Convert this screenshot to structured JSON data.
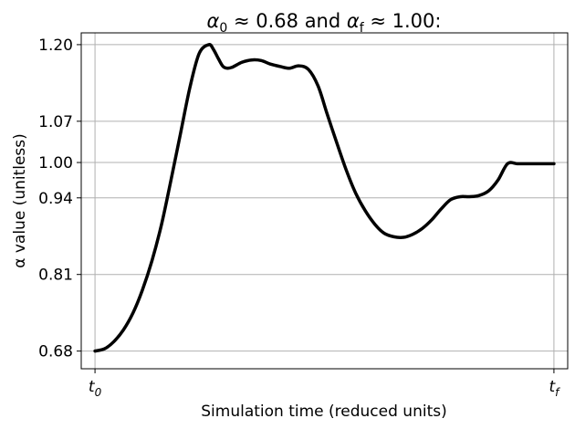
{
  "chart_data": {
    "type": "line",
    "title": "α₀ ≈ 0.68 and α_f ≈ 1.00:",
    "title_parts": {
      "a0": "α",
      "a0_sub": "0",
      "mid": "≈ 0.68 and",
      "af": "α",
      "af_sub": "f",
      "end": "≈ 1.00:"
    },
    "xlabel": "Simulation time (reduced units)",
    "ylabel": "α value (unitless)",
    "xlim": [
      -0.03,
      1.03
    ],
    "ylim": [
      0.65,
      1.22
    ],
    "grid": true,
    "x_ticks": [
      {
        "value": 0,
        "label": "t",
        "sub": "0"
      },
      {
        "value": 1,
        "label": "t",
        "sub": "f"
      }
    ],
    "y_ticks": [
      {
        "value": 0.68,
        "label": "0.68"
      },
      {
        "value": 0.81,
        "label": "0.81"
      },
      {
        "value": 0.94,
        "label": "0.94"
      },
      {
        "value": 1.0,
        "label": "1.00"
      },
      {
        "value": 1.07,
        "label": "1.07"
      },
      {
        "value": 1.2,
        "label": "1.20"
      }
    ],
    "series": [
      {
        "color": "#000000",
        "x": [
          0.0,
          0.021,
          0.041,
          0.062,
          0.083,
          0.103,
          0.124,
          0.145,
          0.165,
          0.186,
          0.207,
          0.227,
          0.248,
          0.258,
          0.269,
          0.279,
          0.289,
          0.3,
          0.32,
          0.341,
          0.362,
          0.382,
          0.403,
          0.424,
          0.444,
          0.465,
          0.486,
          0.506,
          0.527,
          0.548,
          0.568,
          0.589,
          0.61,
          0.63,
          0.651,
          0.672,
          0.692,
          0.713,
          0.734,
          0.754,
          0.775,
          0.796,
          0.816,
          0.837,
          0.858,
          0.878,
          0.899,
          0.92,
          0.94,
          0.961,
          0.982,
          1.0
        ],
        "y": [
          0.68,
          0.684,
          0.696,
          0.716,
          0.745,
          0.783,
          0.833,
          0.895,
          0.968,
          1.048,
          1.128,
          1.185,
          1.2,
          1.192,
          1.176,
          1.163,
          1.16,
          1.162,
          1.17,
          1.174,
          1.173,
          1.167,
          1.163,
          1.16,
          1.164,
          1.158,
          1.13,
          1.082,
          1.033,
          0.986,
          0.948,
          0.918,
          0.895,
          0.88,
          0.874,
          0.873,
          0.878,
          0.888,
          0.903,
          0.921,
          0.937,
          0.942,
          0.942,
          0.944,
          0.952,
          0.97,
          0.998,
          0.998,
          0.998,
          0.998,
          0.998,
          0.998
        ]
      }
    ]
  }
}
